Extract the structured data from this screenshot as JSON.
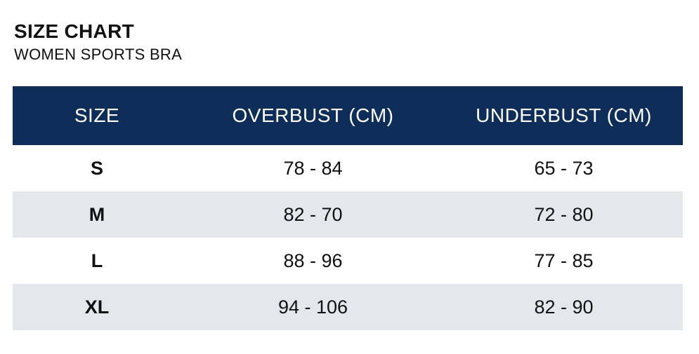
{
  "header": {
    "title": "SIZE CHART",
    "subtitle": "WOMEN SPORTS BRA"
  },
  "table": {
    "columns": [
      "SIZE",
      "OVERBUST (CM)",
      "UNDERBUST (CM)"
    ],
    "rows": [
      {
        "size": "S",
        "overbust": "78 - 84",
        "underbust": "65 - 73"
      },
      {
        "size": "M",
        "overbust": "82 - 70",
        "underbust": "72 - 80"
      },
      {
        "size": "L",
        "overbust": "88 - 96",
        "underbust": "77 - 85"
      },
      {
        "size": "XL",
        "overbust": "94 - 106",
        "underbust": "82 - 90"
      }
    ]
  },
  "colors": {
    "header_background": "#0e2d58",
    "alt_row_background": "#e4e8ec",
    "text": "#111111"
  }
}
